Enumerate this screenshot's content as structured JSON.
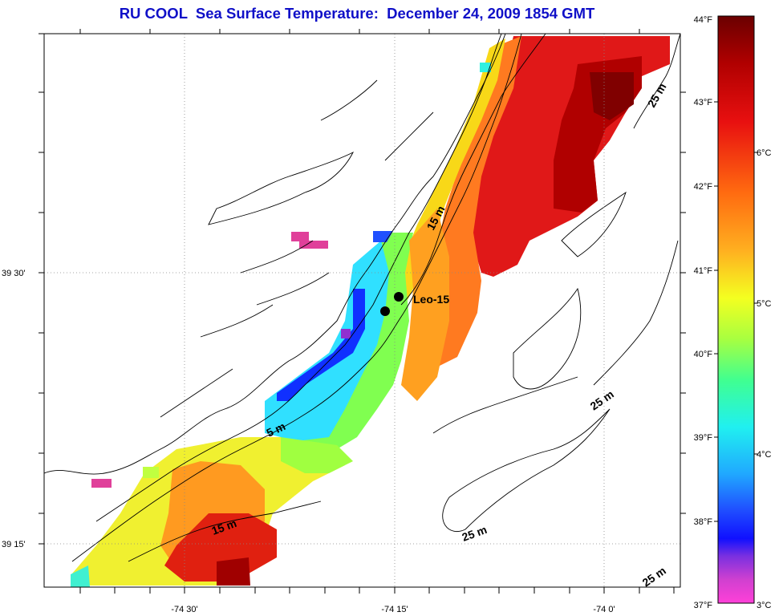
{
  "title": "RU COOL  Sea Surface Temperature:  December 24, 2009 1854 GMT",
  "axes": {
    "lat_labels": [
      "39 30'",
      "39 15'"
    ],
    "lon_labels": [
      "-74 30'",
      "-74 15'",
      "-74 0'"
    ]
  },
  "colorbar": {
    "fahrenheit_labels": [
      "44°F",
      "43°F",
      "42°F",
      "41°F",
      "40°F",
      "39°F",
      "38°F",
      "37°F"
    ],
    "celsius_labels": [
      "6°C",
      "5°C",
      "4°C",
      "3°C"
    ],
    "colors": [
      "#7a0000",
      "#b00000",
      "#e01010",
      "#ff4020",
      "#ff8020",
      "#ffb020",
      "#ffe020",
      "#f0ff20",
      "#a0ff40",
      "#40ff90",
      "#20ffe0",
      "#20c0ff",
      "#2060ff",
      "#1010ff",
      "#8040e0",
      "#e040c0",
      "#ff40d0"
    ]
  },
  "contours": {
    "labels": [
      "15 m",
      "25 m",
      "25 m",
      "5 m",
      "15 m",
      "25 m",
      "25 m"
    ]
  },
  "station": {
    "name": "Leo-15"
  }
}
